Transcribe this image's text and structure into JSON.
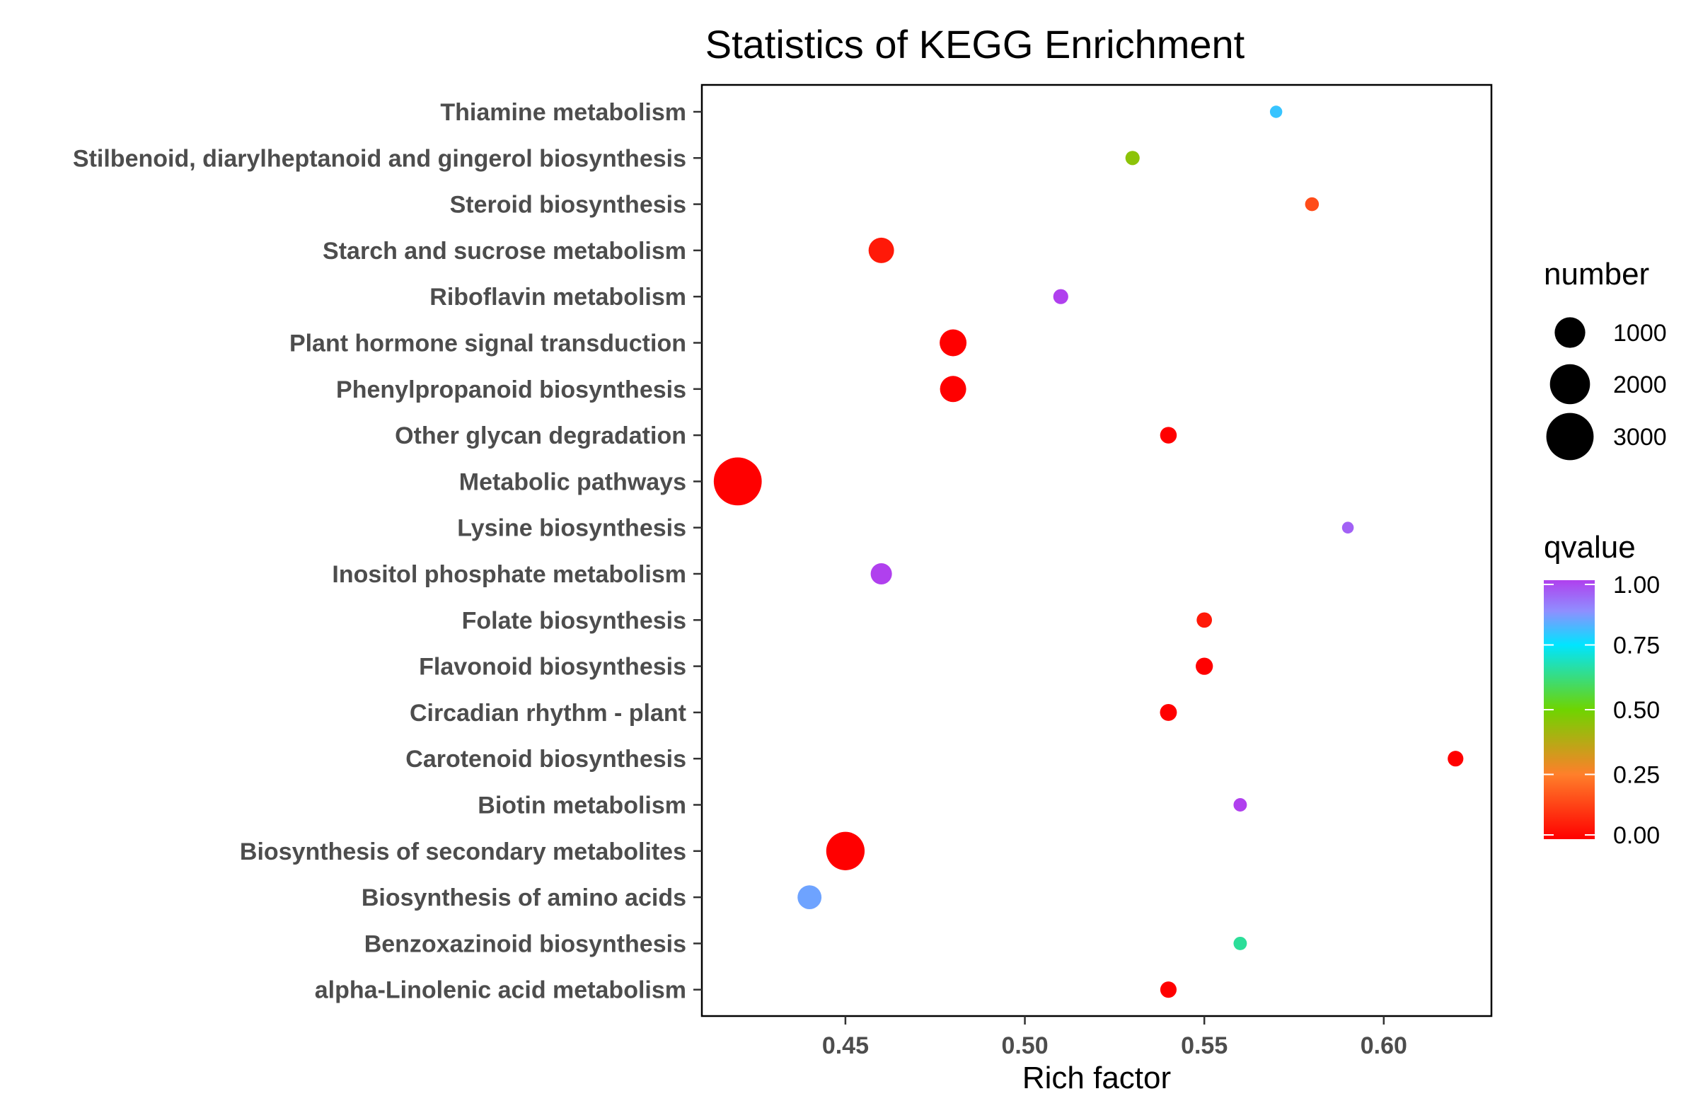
{
  "chart_data": {
    "type": "scatter",
    "title": "Statistics of KEGG Enrichment",
    "xlabel": "Rich factor",
    "ylabel": "",
    "xlim": [
      0.41,
      0.63
    ],
    "xticks": [
      0.45,
      0.5,
      0.55,
      0.6
    ],
    "xtick_labels": [
      "0.45",
      "0.50",
      "0.55",
      "0.60"
    ],
    "categories": [
      "Thiamine metabolism",
      "Stilbenoid, diarylheptanoid and gingerol biosynthesis",
      "Steroid biosynthesis",
      "Starch and sucrose metabolism",
      "Riboflavin metabolism",
      "Plant hormone signal transduction",
      "Phenylpropanoid biosynthesis",
      "Other glycan degradation",
      "Metabolic pathways",
      "Lysine biosynthesis",
      "Inositol phosphate metabolism",
      "Folate biosynthesis",
      "Flavonoid biosynthesis",
      "Circadian rhythm - plant",
      "Carotenoid biosynthesis",
      "Biotin metabolism",
      "Biosynthesis of secondary metabolites",
      "Biosynthesis of amino acids",
      "Benzoxazinoid biosynthesis",
      "alpha-Linolenic acid metabolism"
    ],
    "points": [
      {
        "rich_factor": 0.57,
        "number": 40,
        "qvalue": 0.8
      },
      {
        "rich_factor": 0.53,
        "number": 80,
        "qvalue": 0.45
      },
      {
        "rich_factor": 0.58,
        "number": 70,
        "qvalue": 0.15
      },
      {
        "rich_factor": 0.46,
        "number": 600,
        "qvalue": 0.05
      },
      {
        "rich_factor": 0.51,
        "number": 100,
        "qvalue": 1.0
      },
      {
        "rich_factor": 0.48,
        "number": 700,
        "qvalue": 0.0
      },
      {
        "rich_factor": 0.48,
        "number": 650,
        "qvalue": 0.0
      },
      {
        "rich_factor": 0.54,
        "number": 150,
        "qvalue": 0.0
      },
      {
        "rich_factor": 0.42,
        "number": 3100,
        "qvalue": 0.0
      },
      {
        "rich_factor": 0.59,
        "number": 30,
        "qvalue": 0.95
      },
      {
        "rich_factor": 0.46,
        "number": 350,
        "qvalue": 1.0
      },
      {
        "rich_factor": 0.55,
        "number": 110,
        "qvalue": 0.05
      },
      {
        "rich_factor": 0.55,
        "number": 170,
        "qvalue": 0.0
      },
      {
        "rich_factor": 0.54,
        "number": 160,
        "qvalue": 0.0
      },
      {
        "rich_factor": 0.62,
        "number": 120,
        "qvalue": 0.0
      },
      {
        "rich_factor": 0.56,
        "number": 60,
        "qvalue": 1.0
      },
      {
        "rich_factor": 0.45,
        "number": 1800,
        "qvalue": 0.0
      },
      {
        "rich_factor": 0.44,
        "number": 500,
        "qvalue": 0.85
      },
      {
        "rich_factor": 0.56,
        "number": 60,
        "qvalue": 0.65
      },
      {
        "rich_factor": 0.54,
        "number": 140,
        "qvalue": 0.0
      }
    ],
    "legend_size": {
      "title": "number",
      "values": [
        1000,
        2000,
        3000
      ],
      "labels": [
        "1000",
        "2000",
        "3000"
      ],
      "placement": "right"
    },
    "legend_color": {
      "title": "qvalue",
      "ticks": [
        0.0,
        0.25,
        0.5,
        0.75,
        1.0
      ],
      "tick_labels": [
        "0.00",
        "0.25",
        "0.50",
        "0.75",
        "1.00"
      ],
      "stops": [
        "#ff0000",
        "#ff7f00",
        "#6fd400",
        "#00e5ff",
        "#8080ff",
        "#b040ee"
      ],
      "placement": "right"
    },
    "grid": false
  }
}
